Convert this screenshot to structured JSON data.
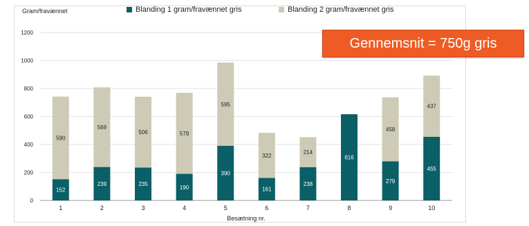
{
  "chart_data": {
    "type": "bar",
    "stacked": true,
    "ylabel": "Gram/fravænnet",
    "xlabel": "Besætning nr.",
    "categories": [
      "1",
      "2",
      "3",
      "4",
      "5",
      "6",
      "7",
      "8",
      "9",
      "10"
    ],
    "ylim": [
      0,
      1200
    ],
    "yticks": [
      0,
      200,
      400,
      600,
      800,
      1000,
      1200
    ],
    "grid": true,
    "legend_position": "top",
    "series": [
      {
        "name": "Blanding 1 gram/fravænnet gris",
        "color": "#0b5f66",
        "values": [
          152,
          239,
          235,
          190,
          390,
          161,
          238,
          616,
          279,
          455
        ]
      },
      {
        "name": "Blanding 2 gram/fravænnet gris",
        "color": "#cdcbb6",
        "values": [
          590,
          569,
          506,
          579,
          595,
          322,
          214,
          null,
          458,
          437
        ]
      }
    ],
    "annotation": "Gennemsnit = 750g gris"
  }
}
